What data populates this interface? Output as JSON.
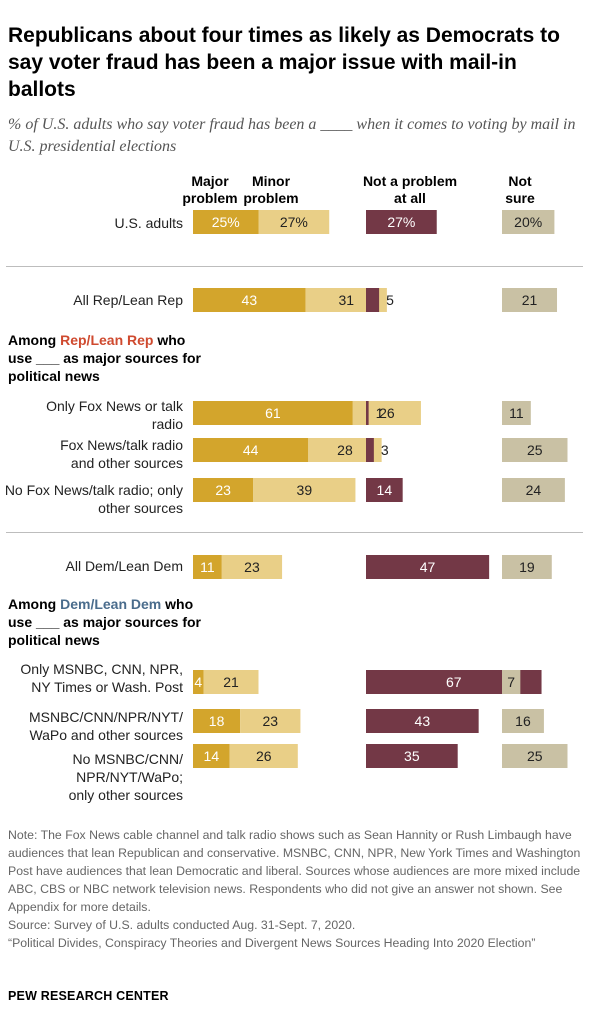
{
  "title": "Republicans about four times as likely as Democrats to say voter fraud has been a major issue with mail-in ballots",
  "subtitle": "% of U.S. adults who say voter fraud has been a ____ when it comes to voting by mail in U.S. presidential elections",
  "columns": {
    "major": "Major problem",
    "minor": "Minor problem",
    "not_problem": "Not a problem at all",
    "not_sure": "Not sure"
  },
  "sections": {
    "rep_prefix": "Among ",
    "rep_highlight": "Rep/Lean Rep",
    "rep_suffix": " who use ___ as major sources for political news",
    "dem_prefix": "Among ",
    "dem_highlight": "Dem/Lean Dem",
    "dem_suffix": " who use ___ as major sources for political news"
  },
  "colors": {
    "major": "#d3a52c",
    "minor": "#e9cf87",
    "not_problem": "#733846",
    "not_sure": "#c9c1a4",
    "rep_highlight": "#cf4a2f",
    "dem_highlight": "#4a6c8c"
  },
  "chart_data": {
    "type": "bar",
    "categories": [
      "U.S. adults",
      "All Rep/Lean Rep",
      "Only Fox News or talk radio",
      "Fox News/talk radio and other sources",
      "No Fox News/talk radio; only other sources",
      "All Dem/Lean Dem",
      "Only MSNBC, CNN, NPR, NY Times or Wash. Post",
      "MSNBC/CNN/NPR/NYT/ WaPo and other sources",
      "No MSNBC/CNN/ NPR/NYT/WaPo; only other sources"
    ],
    "series": [
      {
        "name": "Major problem",
        "values": [
          25,
          43,
          61,
          44,
          23,
          11,
          4,
          18,
          14
        ]
      },
      {
        "name": "Minor problem",
        "values": [
          27,
          31,
          26,
          28,
          39,
          23,
          21,
          23,
          26
        ]
      },
      {
        "name": "Not a problem at all",
        "values": [
          27,
          5,
          1,
          3,
          14,
          47,
          67,
          43,
          35
        ]
      },
      {
        "name": "Not sure",
        "values": [
          20,
          21,
          11,
          25,
          24,
          19,
          7,
          16,
          25
        ]
      }
    ],
    "value_labels": [
      [
        "25%",
        "27%",
        "27%",
        "20%"
      ],
      [
        "43",
        "31",
        "5",
        "21"
      ],
      [
        "61",
        "26",
        "1",
        "11"
      ],
      [
        "44",
        "28",
        "3",
        "25"
      ],
      [
        "23",
        "39",
        "14",
        "24"
      ],
      [
        "11",
        "23",
        "47",
        "19"
      ],
      [
        "4",
        "21",
        "67",
        "7"
      ],
      [
        "18",
        "23",
        "43",
        "16"
      ],
      [
        "14",
        "26",
        "35",
        "25"
      ]
    ]
  },
  "note": "Note: The Fox News cable channel and talk radio shows such as Sean Hannity or Rush Limbaugh have audiences that lean Republican and conservative. MSNBC, CNN, NPR, New York Times and Washington Post have audiences that lean Democratic and liberal. Sources whose audiences are more mixed include ABC, CBS or NBC network television news. Respondents who did not give an answer not shown. See Appendix for more details.",
  "source_line": "Source: Survey of U.S. adults conducted Aug. 31-Sept. 7, 2020.",
  "report_title": "“Political Divides, Conspiracy Theories and Divergent News Sources Heading Into 2020 Election”",
  "org": "PEW RESEARCH CENTER"
}
